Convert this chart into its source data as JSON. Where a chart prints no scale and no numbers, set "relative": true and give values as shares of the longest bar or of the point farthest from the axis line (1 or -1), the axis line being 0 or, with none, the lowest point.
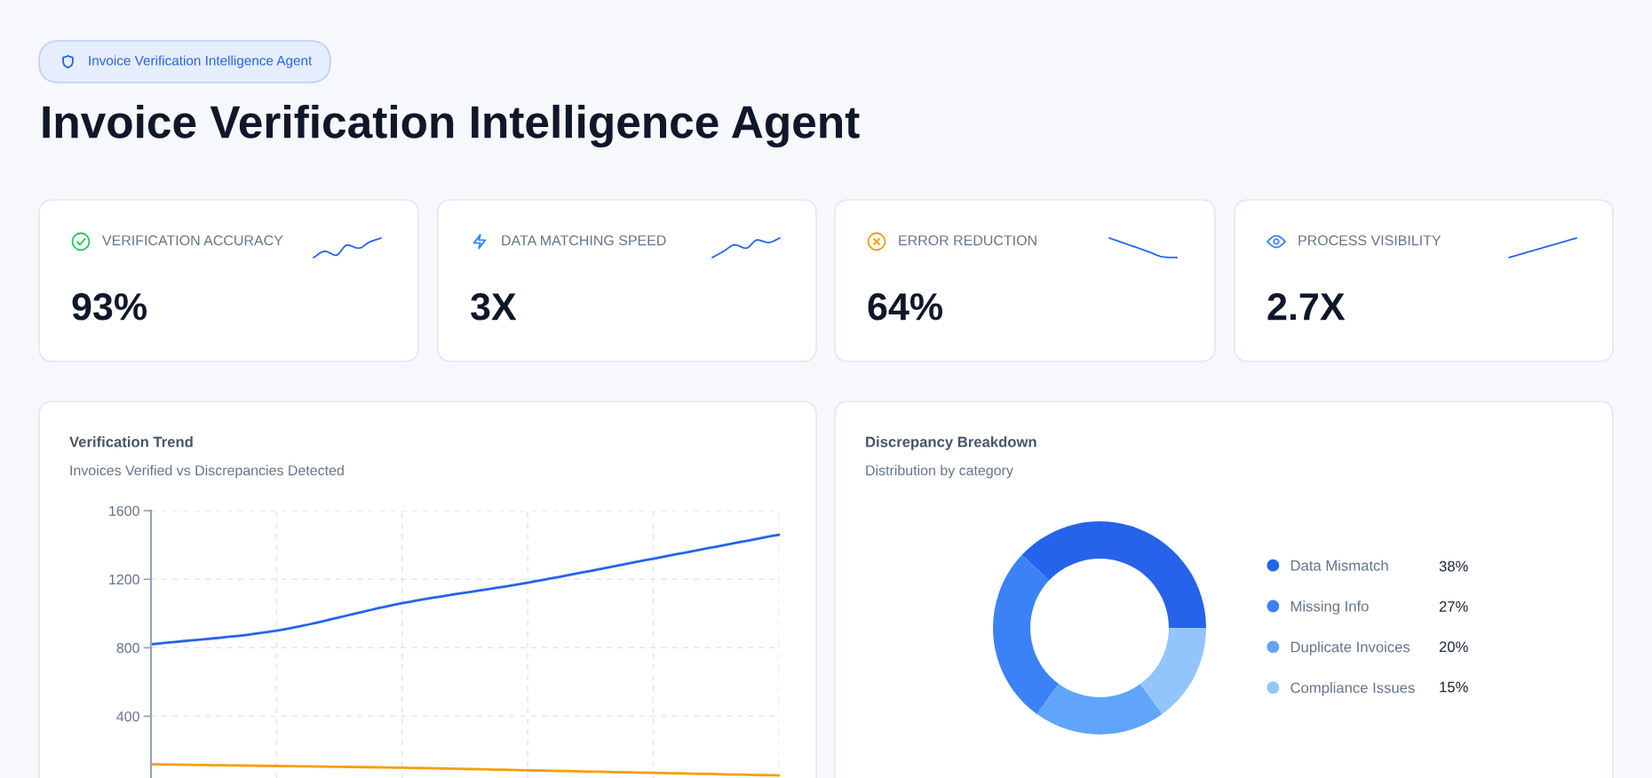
{
  "chart_data": [
    {
      "type": "other",
      "title": "Invoice Verification Intelligence Agent",
      "annotations": [
        "Invoice Verification Intelligence Agent"
      ]
    },
    {
      "type": "line",
      "relative": true,
      "title": "VERIFICATION ACCURACY",
      "annotations": [
        "93%"
      ],
      "categories": [
        null,
        null,
        null,
        null,
        null,
        null,
        null
      ],
      "color": "#2563eb",
      "values": [
        0,
        0.32,
        0.12,
        0.64,
        0.48,
        0.8,
        1
      ]
    },
    {
      "type": "line",
      "relative": true,
      "title": "DATA MATCHING SPEED",
      "annotations": [
        "3X"
      ],
      "categories": [
        null,
        null,
        null,
        null,
        null,
        null,
        null
      ],
      "color": "#2563eb",
      "values": [
        0,
        0.32,
        0.65,
        0.48,
        0.9,
        0.77,
        1
      ]
    },
    {
      "type": "line",
      "relative": true,
      "title": "ERROR REDUCTION",
      "annotations": [
        "64%"
      ],
      "categories": [
        null,
        null,
        null,
        null,
        null,
        null
      ],
      "color": "#2563eb",
      "values": [
        1,
        0.76,
        0.52,
        0.27,
        0.03,
        0
      ]
    },
    {
      "type": "line",
      "relative": true,
      "title": "PROCESS VISIBILITY",
      "annotations": [
        "2.7X"
      ],
      "categories": [
        null,
        null,
        null,
        null,
        null,
        null
      ],
      "color": "#2563eb",
      "values": [
        0,
        0.2,
        0.4,
        0.6,
        0.8,
        1
      ]
    },
    {
      "type": "line",
      "title": "Verification Trend",
      "subtitle": "Invoices Verified vs Discrepancies Detected",
      "categories": [
        null,
        null,
        null,
        null,
        null,
        null
      ],
      "series": [
        {
          "color": "#2563eb",
          "values": [
            820,
            900,
            1060,
            1180,
            1320,
            1460
          ]
        },
        {
          "color": "#f59e0b",
          "values": [
            120,
            110,
            100,
            85,
            70,
            55
          ]
        }
      ],
      "ylim": [
        40,
        1600
      ],
      "yticks": [
        400,
        800,
        1200,
        1600
      ],
      "grid": true,
      "tick_labels": "y"
    },
    {
      "type": "donut",
      "title": "Discrepancy Breakdown",
      "subtitle": "Distribution by category",
      "categories": [
        "Data Mismatch",
        "Missing Info",
        "Duplicate Invoices",
        "Compliance Issues"
      ],
      "values": [
        38,
        27,
        20,
        15
      ],
      "colors": [
        "#2563eb",
        "#3b82f6",
        "#60a5fa",
        "#93c5fd"
      ],
      "value_labels": [
        "38%",
        "27%",
        "20%",
        "15%"
      ],
      "legend": "right"
    }
  ]
}
